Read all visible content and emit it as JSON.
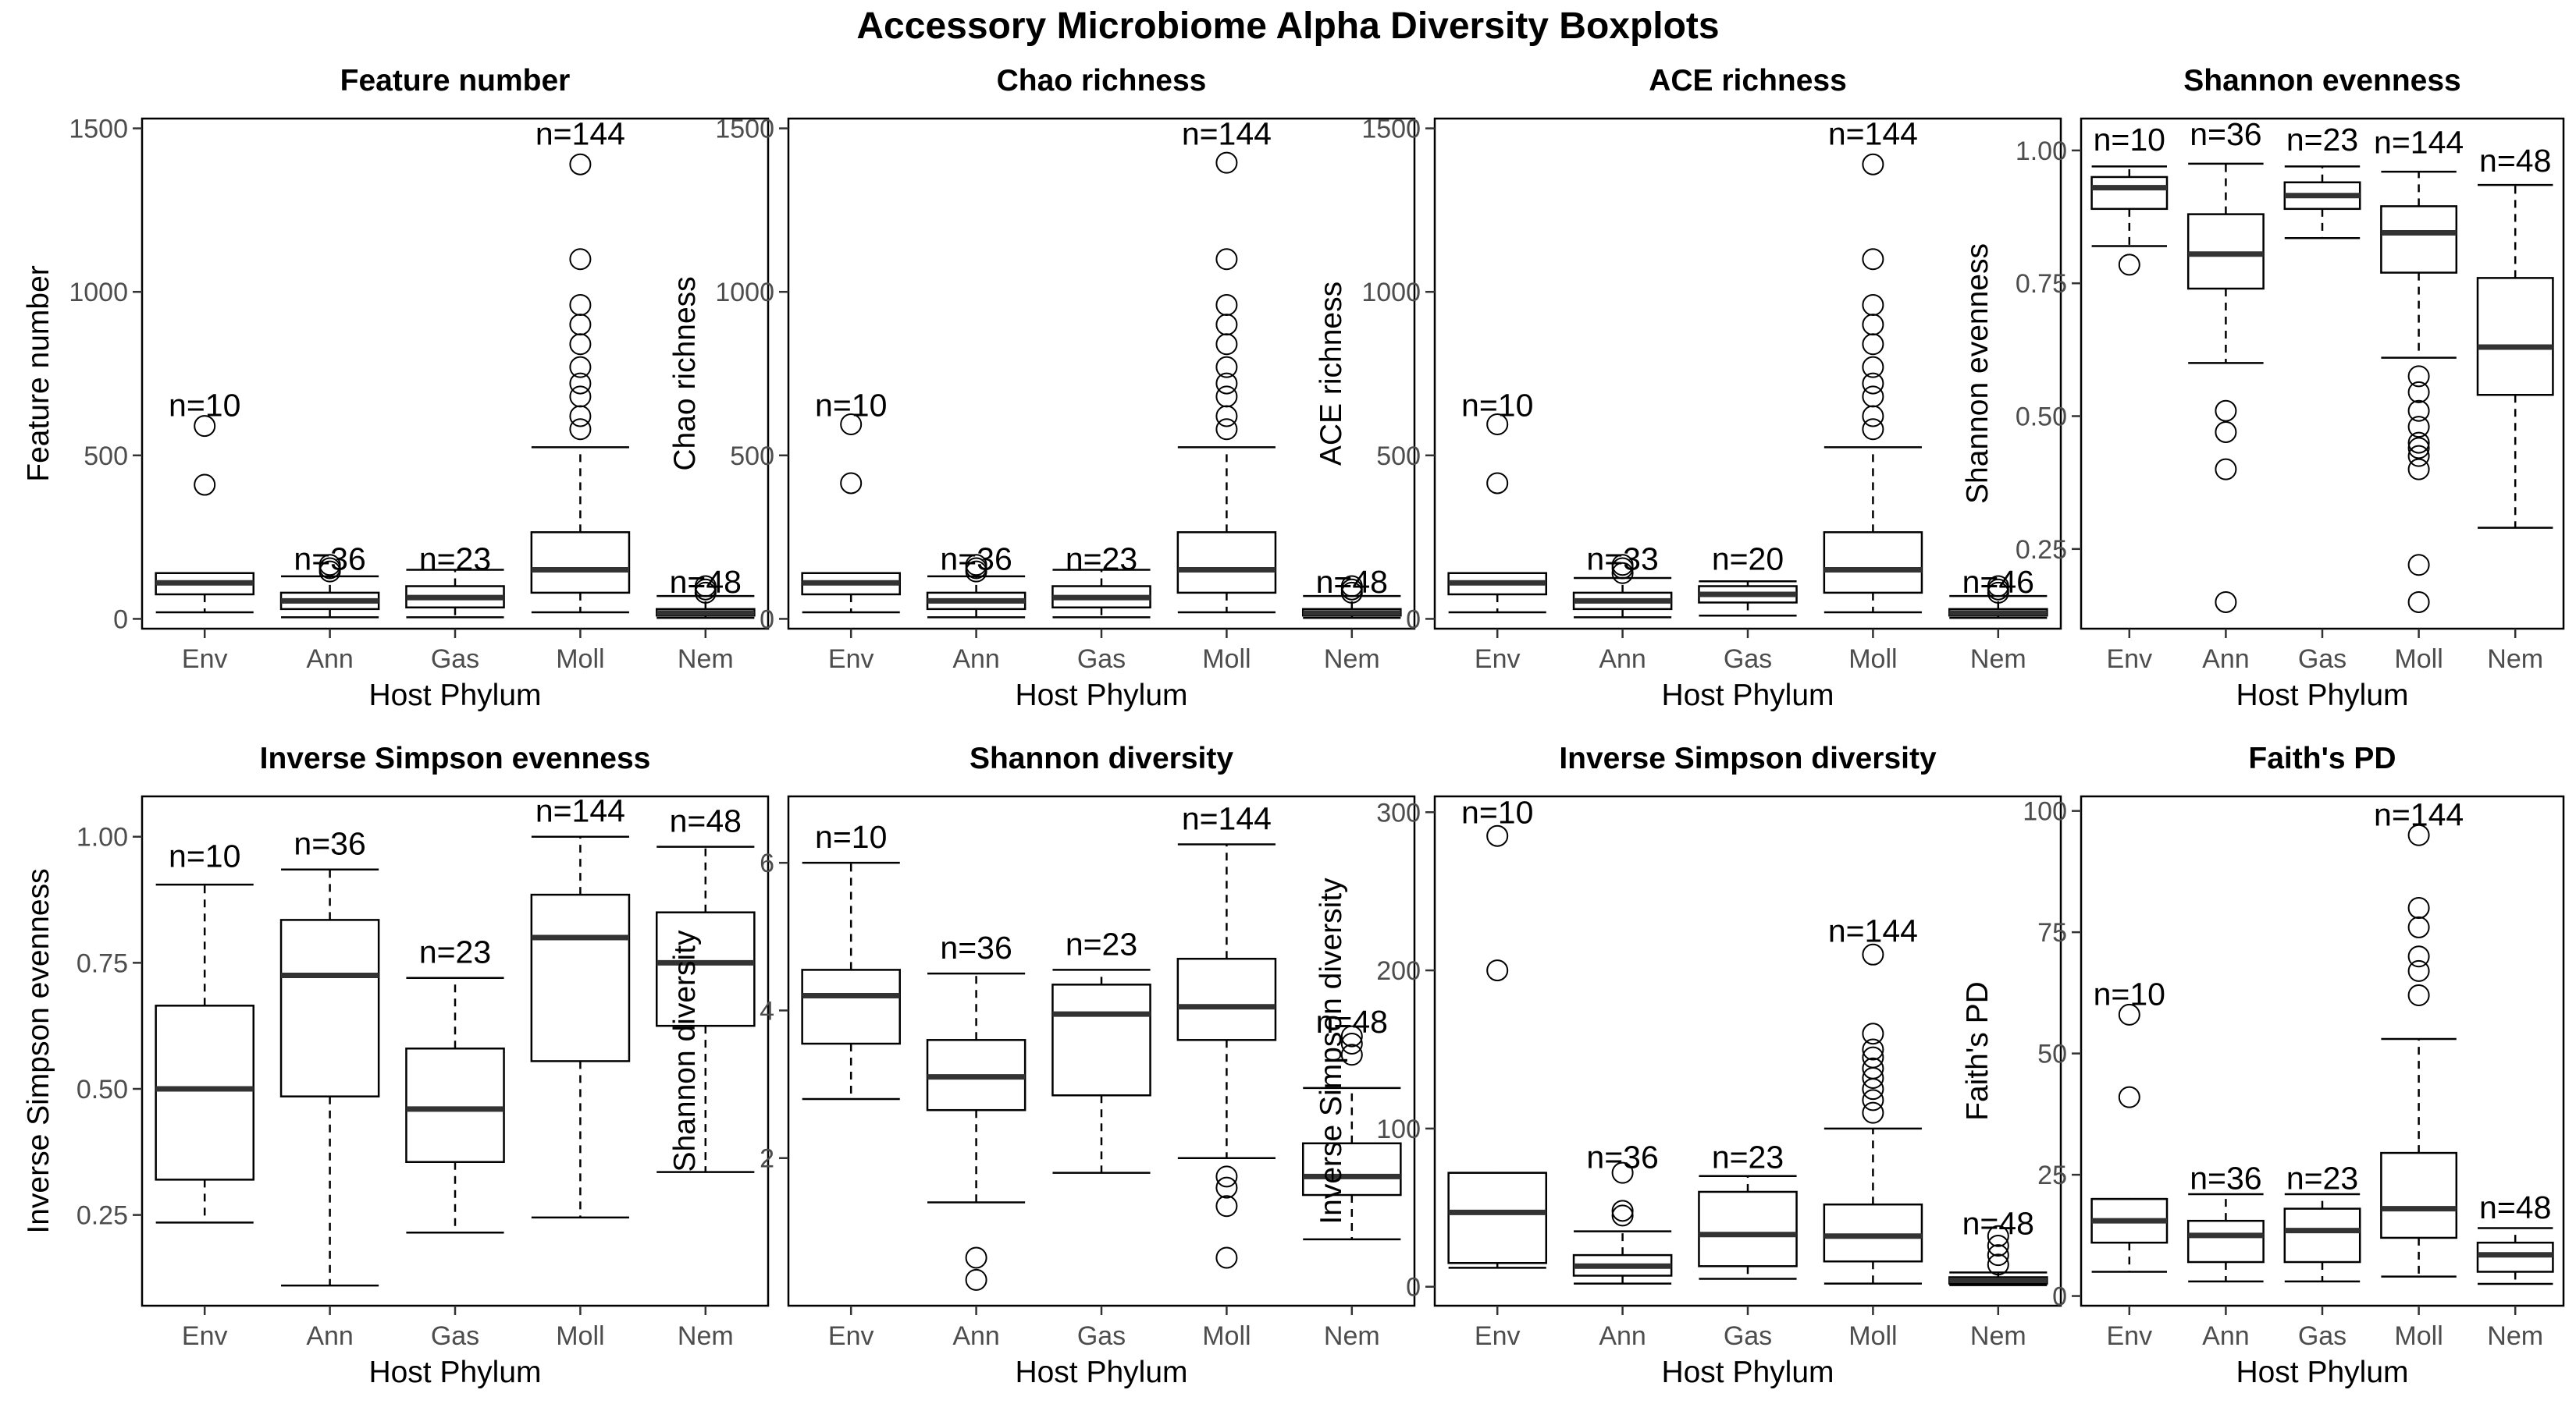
{
  "title": "Accessory Microbiome Alpha Diversity Boxplots",
  "chart_data": [
    {
      "type": "box",
      "title": "Feature number",
      "xlabel": "Host Phylum",
      "ylabel": "Feature number",
      "ylim": [
        -30,
        1530
      ],
      "yticks": [
        0,
        500,
        1000,
        1500
      ],
      "ytick_labels": [
        "0",
        "500",
        "1000",
        "1500"
      ],
      "categories": [
        "Env",
        "Ann",
        "Gas",
        "Moll",
        "Nem"
      ],
      "boxes": [
        {
          "min": 20,
          "q1": 75,
          "median": 110,
          "q3": 140,
          "max": 140,
          "outliers": [
            410,
            590
          ],
          "n_label": "n=10",
          "n_y": 620
        },
        {
          "min": 5,
          "q1": 30,
          "median": 55,
          "q3": 80,
          "max": 130,
          "outliers": [
            145,
            155,
            165
          ],
          "n_label": "n=36",
          "n_y": 150
        },
        {
          "min": 5,
          "q1": 35,
          "median": 65,
          "q3": 100,
          "max": 150,
          "outliers": [],
          "n_label": "n=23",
          "n_y": 150
        },
        {
          "min": 20,
          "q1": 80,
          "median": 150,
          "q3": 265,
          "max": 525,
          "outliers": [
            580,
            620,
            680,
            720,
            770,
            840,
            900,
            960,
            1100,
            1390
          ],
          "n_label": "n=144",
          "n_y": 1450
        },
        {
          "min": 3,
          "q1": 10,
          "median": 18,
          "q3": 30,
          "max": 70,
          "outliers": [
            80,
            90,
            100
          ],
          "n_label": "n=48",
          "n_y": 80
        }
      ]
    },
    {
      "type": "box",
      "title": "Chao richness",
      "xlabel": "Host Phylum",
      "ylabel": "Chao richness",
      "ylim": [
        -30,
        1530
      ],
      "yticks": [
        0,
        500,
        1000,
        1500
      ],
      "ytick_labels": [
        "0",
        "500",
        "1000",
        "1500"
      ],
      "categories": [
        "Env",
        "Ann",
        "Gas",
        "Moll",
        "Nem"
      ],
      "boxes": [
        {
          "min": 20,
          "q1": 75,
          "median": 110,
          "q3": 140,
          "max": 140,
          "outliers": [
            415,
            595
          ],
          "n_label": "n=10",
          "n_y": 620
        },
        {
          "min": 5,
          "q1": 30,
          "median": 55,
          "q3": 80,
          "max": 130,
          "outliers": [
            145,
            155,
            165
          ],
          "n_label": "n=36",
          "n_y": 150
        },
        {
          "min": 5,
          "q1": 35,
          "median": 65,
          "q3": 100,
          "max": 150,
          "outliers": [],
          "n_label": "n=23",
          "n_y": 150
        },
        {
          "min": 20,
          "q1": 80,
          "median": 150,
          "q3": 265,
          "max": 525,
          "outliers": [
            580,
            620,
            680,
            720,
            770,
            840,
            900,
            960,
            1100,
            1395
          ],
          "n_label": "n=144",
          "n_y": 1450
        },
        {
          "min": 3,
          "q1": 10,
          "median": 18,
          "q3": 30,
          "max": 70,
          "outliers": [
            80,
            90,
            100
          ],
          "n_label": "n=48",
          "n_y": 80
        }
      ]
    },
    {
      "type": "box",
      "title": "ACE richness",
      "xlabel": "Host Phylum",
      "ylabel": "ACE richness",
      "ylim": [
        -30,
        1530
      ],
      "yticks": [
        0,
        500,
        1000,
        1500
      ],
      "ytick_labels": [
        "0",
        "500",
        "1000",
        "1500"
      ],
      "categories": [
        "Env",
        "Ann",
        "Gas",
        "Moll",
        "Nem"
      ],
      "boxes": [
        {
          "min": 20,
          "q1": 75,
          "median": 110,
          "q3": 140,
          "max": 140,
          "outliers": [
            415,
            595
          ],
          "n_label": "n=10",
          "n_y": 620
        },
        {
          "min": 5,
          "q1": 30,
          "median": 55,
          "q3": 80,
          "max": 125,
          "outliers": [
            140,
            155,
            165
          ],
          "n_label": "n=33",
          "n_y": 150
        },
        {
          "min": 10,
          "q1": 50,
          "median": 75,
          "q3": 100,
          "max": 115,
          "outliers": [],
          "n_label": "n=20",
          "n_y": 150
        },
        {
          "min": 20,
          "q1": 80,
          "median": 150,
          "q3": 265,
          "max": 525,
          "outliers": [
            580,
            620,
            680,
            720,
            770,
            840,
            900,
            960,
            1100,
            1390
          ],
          "n_label": "n=144",
          "n_y": 1450
        },
        {
          "min": 3,
          "q1": 10,
          "median": 18,
          "q3": 30,
          "max": 70,
          "outliers": [
            80,
            90,
            100
          ],
          "n_label": "n=46",
          "n_y": 80
        }
      ]
    },
    {
      "type": "box",
      "title": "Shannon evenness",
      "xlabel": "Host Phylum",
      "ylabel": "Shannon evenness",
      "ylim": [
        0.1,
        1.06
      ],
      "yticks": [
        0.25,
        0.5,
        0.75,
        1.0
      ],
      "ytick_labels": [
        "0.25",
        "0.50",
        "0.75",
        "1.00"
      ],
      "categories": [
        "Env",
        "Ann",
        "Gas",
        "Moll",
        "Nem"
      ],
      "boxes": [
        {
          "min": 0.82,
          "q1": 0.89,
          "median": 0.93,
          "q3": 0.95,
          "max": 0.97,
          "outliers": [
            0.785
          ],
          "n_label": "n=10",
          "n_y": 1.0
        },
        {
          "min": 0.6,
          "q1": 0.74,
          "median": 0.805,
          "q3": 0.88,
          "max": 0.975,
          "outliers": [
            0.51,
            0.47,
            0.4,
            0.15
          ],
          "n_label": "n=36",
          "n_y": 1.01
        },
        {
          "min": 0.835,
          "q1": 0.89,
          "median": 0.915,
          "q3": 0.94,
          "max": 0.97,
          "outliers": [],
          "n_label": "n=23",
          "n_y": 1.0
        },
        {
          "min": 0.61,
          "q1": 0.77,
          "median": 0.845,
          "q3": 0.895,
          "max": 0.96,
          "outliers": [
            0.575,
            0.545,
            0.51,
            0.48,
            0.45,
            0.44,
            0.425,
            0.4,
            0.22,
            0.15
          ],
          "n_label": "n=144",
          "n_y": 0.995
        },
        {
          "min": 0.29,
          "q1": 0.54,
          "median": 0.63,
          "q3": 0.76,
          "max": 0.935,
          "outliers": [],
          "n_label": "n=48",
          "n_y": 0.96
        }
      ]
    },
    {
      "type": "box",
      "title": "Inverse Simpson evenness",
      "xlabel": "Host Phylum",
      "ylabel": "Inverse Simpson evenness",
      "ylim": [
        0.07,
        1.08
      ],
      "yticks": [
        0.25,
        0.5,
        0.75,
        1.0
      ],
      "ytick_labels": [
        "0.25",
        "0.50",
        "0.75",
        "1.00"
      ],
      "categories": [
        "Env",
        "Ann",
        "Gas",
        "Moll",
        "Nem"
      ],
      "boxes": [
        {
          "min": 0.235,
          "q1": 0.32,
          "median": 0.5,
          "q3": 0.665,
          "max": 0.905,
          "outliers": [],
          "n_label": "n=10",
          "n_y": 0.94
        },
        {
          "min": 0.11,
          "q1": 0.485,
          "median": 0.725,
          "q3": 0.835,
          "max": 0.935,
          "outliers": [],
          "n_label": "n=36",
          "n_y": 0.965
        },
        {
          "min": 0.215,
          "q1": 0.355,
          "median": 0.46,
          "q3": 0.58,
          "max": 0.72,
          "outliers": [],
          "n_label": "n=23",
          "n_y": 0.75
        },
        {
          "min": 0.245,
          "q1": 0.555,
          "median": 0.8,
          "q3": 0.885,
          "max": 1.0,
          "outliers": [],
          "n_label": "n=144",
          "n_y": 1.03
        },
        {
          "min": 0.335,
          "q1": 0.625,
          "median": 0.75,
          "q3": 0.85,
          "max": 0.98,
          "outliers": [],
          "n_label": "n=48",
          "n_y": 1.01
        }
      ]
    },
    {
      "type": "box",
      "title": "Shannon diversity",
      "xlabel": "Host Phylum",
      "ylabel": "Shannon diversity",
      "ylim": [
        0.0,
        6.9
      ],
      "yticks": [
        2,
        4,
        6
      ],
      "ytick_labels": [
        "2",
        "4",
        "6"
      ],
      "categories": [
        "Env",
        "Ann",
        "Gas",
        "Moll",
        "Nem"
      ],
      "boxes": [
        {
          "min": 2.8,
          "q1": 3.55,
          "median": 4.2,
          "q3": 4.55,
          "max": 6.0,
          "outliers": [],
          "n_label": "n=10",
          "n_y": 6.2
        },
        {
          "min": 1.4,
          "q1": 2.65,
          "median": 3.1,
          "q3": 3.6,
          "max": 4.5,
          "outliers": [
            0.65,
            0.35
          ],
          "n_label": "n=36",
          "n_y": 4.7
        },
        {
          "min": 1.8,
          "q1": 2.85,
          "median": 3.95,
          "q3": 4.35,
          "max": 4.55,
          "outliers": [],
          "n_label": "n=23",
          "n_y": 4.75
        },
        {
          "min": 2.0,
          "q1": 3.6,
          "median": 4.05,
          "q3": 4.7,
          "max": 6.25,
          "outliers": [
            1.75,
            1.6,
            1.35,
            0.65
          ],
          "n_label": "n=144",
          "n_y": 6.45
        },
        {
          "min": 0.9,
          "q1": 1.5,
          "median": 1.75,
          "q3": 2.2,
          "max": 2.95,
          "outliers": [
            3.4,
            3.55,
            3.65
          ],
          "n_label": "n=48",
          "n_y": 3.7
        }
      ]
    },
    {
      "type": "box",
      "title": "Inverse Simpson diversity",
      "xlabel": "Host Phylum",
      "ylabel": "Inverse Simpson diversity",
      "ylim": [
        -12,
        310
      ],
      "yticks": [
        0,
        100,
        200,
        300
      ],
      "ytick_labels": [
        "0",
        "100",
        "200",
        "300"
      ],
      "categories": [
        "Env",
        "Ann",
        "Gas",
        "Moll",
        "Nem"
      ],
      "boxes": [
        {
          "min": 12,
          "q1": 15,
          "median": 47,
          "q3": 72,
          "max": 72,
          "outliers": [
            200,
            285
          ],
          "n_label": "n=10",
          "n_y": 293
        },
        {
          "min": 2,
          "q1": 7,
          "median": 13,
          "q3": 20,
          "max": 35,
          "outliers": [
            45,
            48,
            72
          ],
          "n_label": "n=36",
          "n_y": 75
        },
        {
          "min": 5,
          "q1": 13,
          "median": 33,
          "q3": 60,
          "max": 70,
          "outliers": [],
          "n_label": "n=23",
          "n_y": 75
        },
        {
          "min": 2,
          "q1": 16,
          "median": 32,
          "q3": 52,
          "max": 100,
          "outliers": [
            110,
            118,
            125,
            132,
            138,
            145,
            150,
            160,
            210
          ],
          "n_label": "n=144",
          "n_y": 218
        },
        {
          "min": 1,
          "q1": 2,
          "median": 4,
          "q3": 6,
          "max": 9,
          "outliers": [
            14,
            20,
            26,
            32
          ],
          "n_label": "n=48",
          "n_y": 33
        }
      ]
    },
    {
      "type": "box",
      "title": "Faith's PD",
      "xlabel": "Host Phylum",
      "ylabel": "Faith's PD",
      "ylim": [
        -2,
        103
      ],
      "yticks": [
        0,
        25,
        50,
        75,
        100
      ],
      "ytick_labels": [
        "0",
        "25",
        "50",
        "75",
        "100"
      ],
      "categories": [
        "Env",
        "Ann",
        "Gas",
        "Moll",
        "Nem"
      ],
      "boxes": [
        {
          "min": 5,
          "q1": 11,
          "median": 15.5,
          "q3": 20,
          "max": 20,
          "outliers": [
            41,
            58
          ],
          "n_label": "n=10",
          "n_y": 60
        },
        {
          "min": 3,
          "q1": 7,
          "median": 12.5,
          "q3": 15.5,
          "max": 21,
          "outliers": [],
          "n_label": "n=36",
          "n_y": 22
        },
        {
          "min": 3,
          "q1": 7,
          "median": 13.5,
          "q3": 18,
          "max": 21,
          "outliers": [],
          "n_label": "n=23",
          "n_y": 22
        },
        {
          "min": 4,
          "q1": 12,
          "median": 18,
          "q3": 29.5,
          "max": 53,
          "outliers": [
            62,
            67,
            70,
            76,
            80,
            95
          ],
          "n_label": "n=144",
          "n_y": 97
        },
        {
          "min": 2.5,
          "q1": 5,
          "median": 8.5,
          "q3": 11,
          "max": 14,
          "outliers": [],
          "n_label": "n=48",
          "n_y": 16
        }
      ]
    }
  ]
}
